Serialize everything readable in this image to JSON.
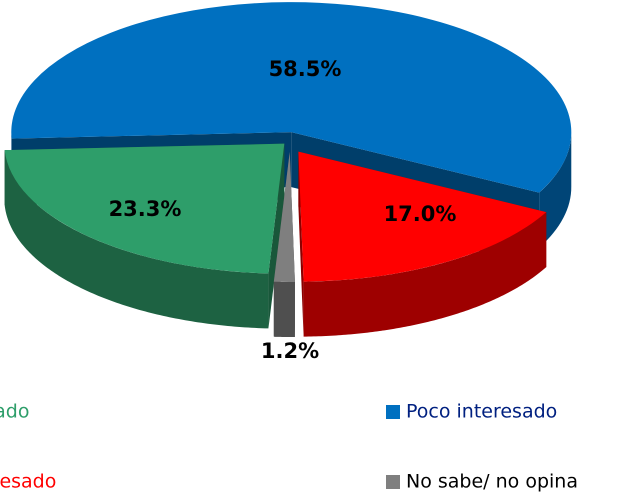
{
  "chart_data": {
    "type": "pie3d",
    "categories": [
      "Poco interesado",
      "Nada interesado",
      "No sabe/ no opina",
      "Muy interesado"
    ],
    "values": [
      58.5,
      17.0,
      1.2,
      23.3
    ],
    "value_labels": [
      "58.5%",
      "17.0%",
      "1.2%",
      "23.3%"
    ],
    "colors": [
      "#0070c0",
      "#ff0000",
      "#7f7f7f",
      "#2e9e6a"
    ],
    "legend": "bottom"
  }
}
